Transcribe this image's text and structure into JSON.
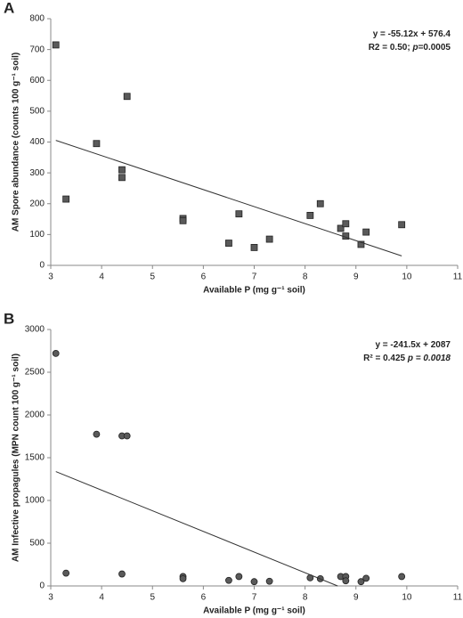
{
  "chart_data": [
    {
      "type": "scatter",
      "panel_label": "A",
      "y_label": "AM Spore abundance  (counts 100 g⁻¹ soil)",
      "x_label": "Available P (mg g⁻¹ soil)",
      "annotations": [
        [
          {
            "text": "y = -55.12x + 576.4"
          }
        ],
        [
          {
            "text": "R2 = 0.50; "
          },
          {
            "text": "p",
            "italic": true
          },
          {
            "text": "=0.0005"
          }
        ]
      ],
      "xlim": [
        3,
        11
      ],
      "xticks": [
        3,
        4,
        5,
        6,
        7,
        8,
        9,
        10,
        11
      ],
      "ylim": [
        0,
        800
      ],
      "yticks": [
        0,
        100,
        200,
        300,
        400,
        500,
        600,
        700,
        800
      ],
      "series": [
        {
          "marker": "square",
          "color": "#5a5a5a",
          "x": [
            3.1,
            3.3,
            3.9,
            4.4,
            4.4,
            4.5,
            5.6,
            5.6,
            6.5,
            6.7,
            7.0,
            7.3,
            8.1,
            8.3,
            8.7,
            8.8,
            8.8,
            9.1,
            9.2,
            9.9
          ],
          "values": [
            715,
            215,
            395,
            310,
            285,
            548,
            152,
            145,
            72,
            167,
            58,
            85,
            162,
            200,
            120,
            135,
            95,
            68,
            108,
            132
          ]
        },
        {
          "marker": "line",
          "color": "#333333",
          "x": [
            3.1,
            9.9
          ],
          "values": [
            405.5,
            30.7
          ]
        }
      ]
    },
    {
      "type": "scatter",
      "panel_label": "B",
      "y_label": "AM Infective propagules (MPN count 100 g⁻¹ soil)",
      "x_label": "Available P (mg g⁻¹ soil)",
      "annotations": [
        [
          {
            "text": "y = -241.5x + 2087"
          }
        ],
        [
          {
            "text": "R² = 0.425 "
          },
          {
            "text": "p = 0.0018",
            "italic": true
          }
        ]
      ],
      "xlim": [
        3,
        11
      ],
      "xticks": [
        3,
        4,
        5,
        6,
        7,
        8,
        9,
        10,
        11
      ],
      "ylim": [
        0,
        3000
      ],
      "yticks": [
        0,
        500,
        1000,
        1500,
        2000,
        2500,
        3000
      ],
      "series": [
        {
          "marker": "circle",
          "color": "#5a5a5a",
          "x": [
            3.1,
            3.3,
            3.9,
            4.4,
            4.5,
            4.4,
            5.6,
            5.6,
            6.5,
            6.7,
            7.0,
            7.3,
            8.1,
            8.3,
            8.7,
            8.8,
            8.8,
            9.1,
            9.2,
            9.9
          ],
          "values": [
            2720,
            150,
            1775,
            1755,
            1755,
            140,
            110,
            85,
            65,
            110,
            50,
            55,
            95,
            85,
            110,
            110,
            60,
            50,
            90,
            110
          ]
        },
        {
          "marker": "line",
          "color": "#333333",
          "x": [
            3.1,
            8.64
          ],
          "values": [
            1338,
            0
          ]
        }
      ]
    }
  ]
}
